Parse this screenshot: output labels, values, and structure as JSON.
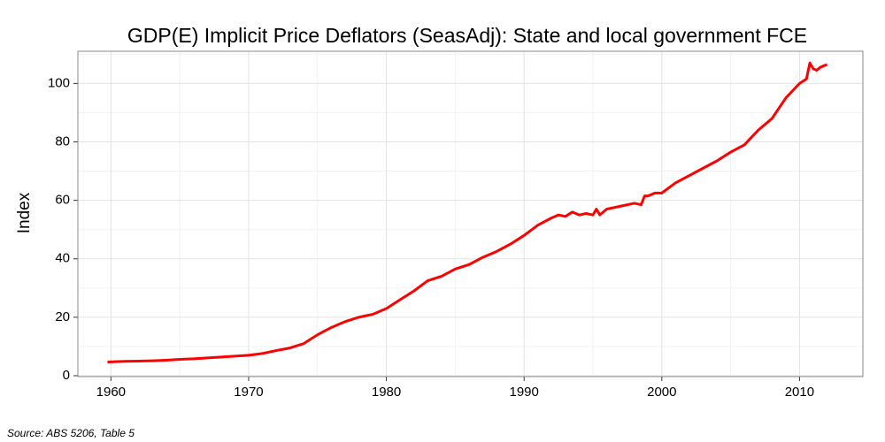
{
  "chart_data": {
    "type": "line",
    "title": "GDP(E) Implicit Price Deflators (SeasAdj): State and local government FCE",
    "y_label": "Index",
    "source": "Source: ABS 5206, Table 5",
    "x": [
      1959.75,
      1961,
      1962,
      1963,
      1964,
      1965,
      1966,
      1967,
      1968,
      1969,
      1970,
      1971,
      1972,
      1973,
      1974,
      1975,
      1976,
      1977,
      1978,
      1979,
      1980,
      1981,
      1982,
      1983,
      1984,
      1985,
      1986,
      1987,
      1988,
      1989,
      1990,
      1991,
      1992,
      1992.5,
      1993,
      1993.5,
      1994,
      1994.5,
      1995,
      1995.25,
      1995.5,
      1996,
      1997,
      1998,
      1998.5,
      1998.75,
      1999,
      1999.5,
      2000,
      2001,
      2002,
      2003,
      2004,
      2005,
      2006,
      2007,
      2008,
      2009,
      2010,
      2010.5,
      2010.75,
      2011,
      2011.25,
      2011.5,
      2012
    ],
    "series": [
      {
        "name": "State and local government FCE",
        "color": "#ff0000",
        "values": [
          4.7,
          4.9,
          5.0,
          5.1,
          5.3,
          5.6,
          5.8,
          6.1,
          6.4,
          6.7,
          7.0,
          7.6,
          8.6,
          9.5,
          11.0,
          14.0,
          16.5,
          18.5,
          20.0,
          21.0,
          23.0,
          26,
          29,
          32.5,
          34,
          36.5,
          38,
          40.5,
          42.5,
          45,
          48,
          51.5,
          54,
          55,
          54.5,
          56,
          55,
          55.5,
          55,
          57,
          55,
          57,
          58,
          59,
          58.5,
          61.5,
          61.5,
          62.5,
          62.5,
          66,
          68.5,
          71,
          73.5,
          76.5,
          79,
          84,
          88,
          95,
          100,
          101.5,
          107,
          105,
          104.5,
          105.5,
          106.5
        ]
      }
    ],
    "xlim": [
      1957.6,
      2014.6
    ],
    "xticks": [
      1960,
      1970,
      1980,
      1990,
      2000,
      2010
    ],
    "ylim": [
      -0.3,
      111
    ],
    "yticks": [
      0,
      20,
      40,
      60,
      80,
      100
    ],
    "grid": true
  }
}
